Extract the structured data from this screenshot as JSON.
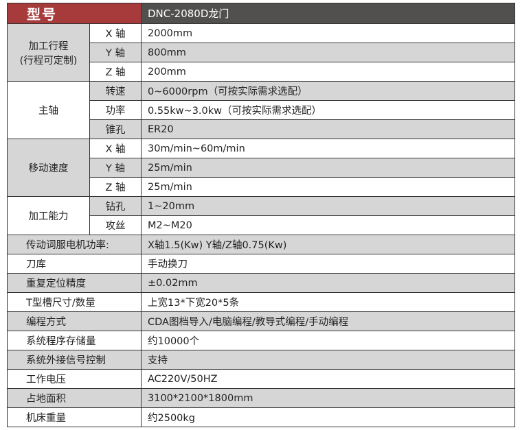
{
  "header": {
    "label": "型号",
    "model": "DNC-2080D龙门"
  },
  "groups": [
    {
      "label": "加工行程\n(行程可定制)",
      "line1": "加工行程",
      "line2": "(行程可定制)",
      "rows": [
        {
          "sub": "X 轴",
          "value": "2000mm"
        },
        {
          "sub": "Y 轴",
          "value": "800mm"
        },
        {
          "sub": "Z 轴",
          "value": "200mm"
        }
      ]
    },
    {
      "label": "主轴",
      "rows": [
        {
          "sub": "转速",
          "value": "0~6000rpm（可按实际需求选配）"
        },
        {
          "sub": "功率",
          "value": "0.55kw~3.0kw（可按实际需求选配）"
        },
        {
          "sub": "锥孔",
          "value": "ER20"
        }
      ]
    },
    {
      "label": "移动速度",
      "rows": [
        {
          "sub": "X 轴",
          "value": "30m/min~60m/min"
        },
        {
          "sub": "Y 轴",
          "value": "25m/min"
        },
        {
          "sub": "Z 轴",
          "value": "25m/min"
        }
      ]
    },
    {
      "label": "加工能力",
      "rows": [
        {
          "sub": "钻孔",
          "value": "1~20mm"
        },
        {
          "sub": "攻丝",
          "value": "M2~M20"
        }
      ]
    }
  ],
  "rows": [
    {
      "label": "传动词服电机功率:",
      "value": "X轴1.5(Kw)  Y轴/Z轴0.75(Kw)"
    },
    {
      "label": "刀库",
      "value": "手动换刀"
    },
    {
      "label": "重复定位精度",
      "value": "±0.02mm"
    },
    {
      "label": "T型槽尺寸/数量",
      "value": "上宽13*下宽20*5条"
    },
    {
      "label": "编程方式",
      "value": "CDA图档导入/电脑编程/教导式编程/手动编程"
    },
    {
      "label": "系统程序存储量",
      "value": "约10000个"
    },
    {
      "label": "系统外接信号控制",
      "value": "支持"
    },
    {
      "label": "工作电压",
      "value": "AC220V/50HZ"
    },
    {
      "label": "占地面积",
      "value": "3100*2100*1800mm"
    },
    {
      "label": "机床重量",
      "value": "约2500kg"
    }
  ],
  "colors": {
    "header_red": "#a73b3b",
    "header_dark": "#524f4f",
    "stripe": "#d6d6d6"
  }
}
